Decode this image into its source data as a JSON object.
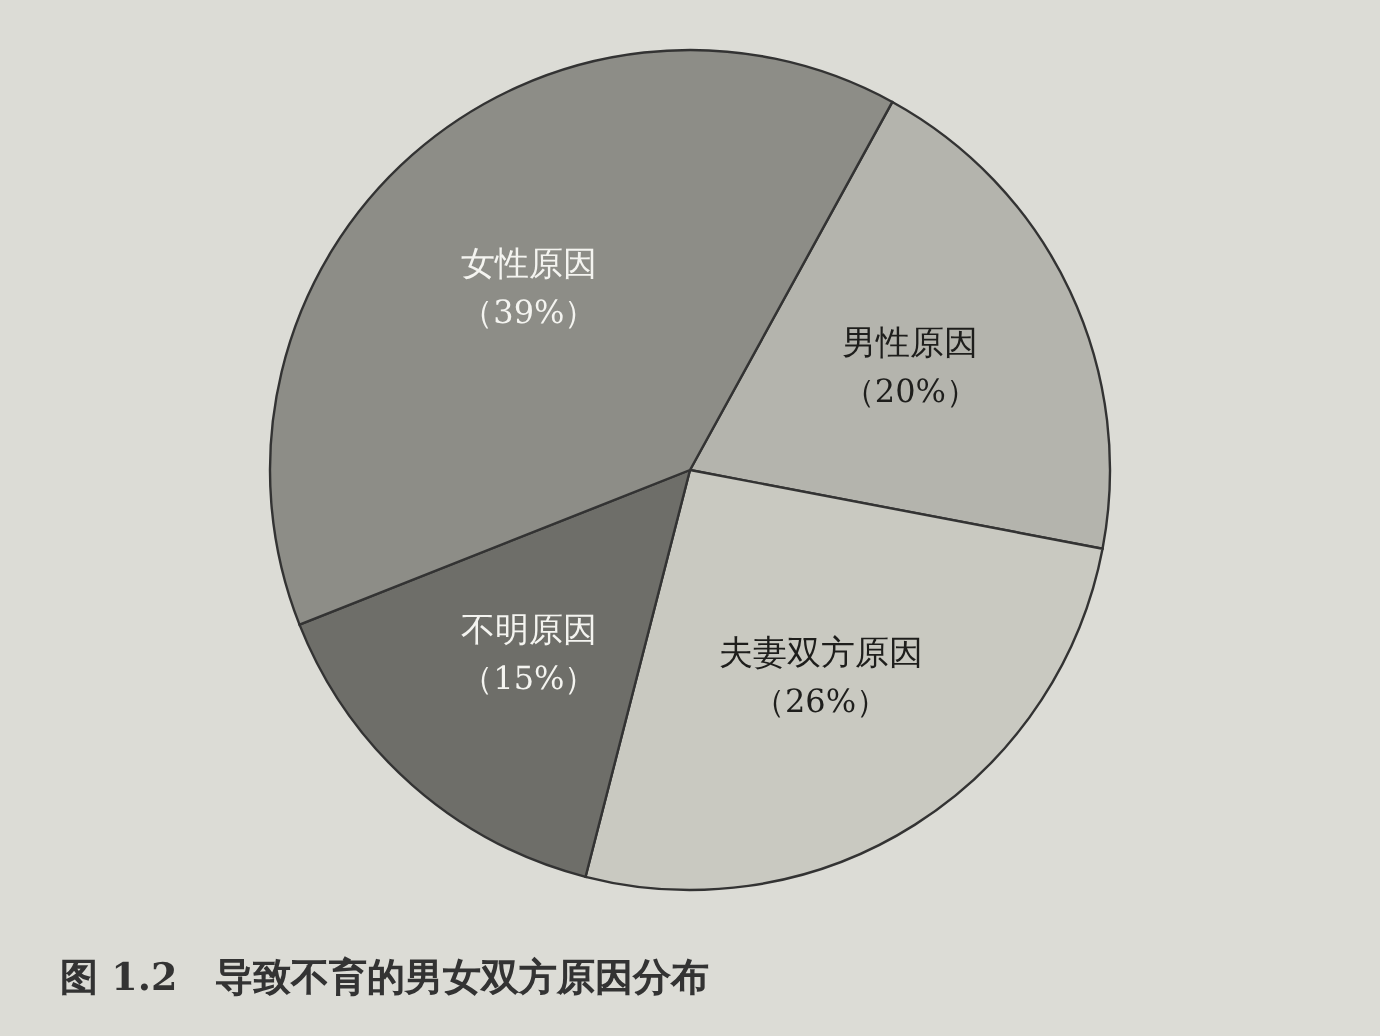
{
  "chart_data": {
    "type": "pie",
    "title": "图 1.2　导致不育的男女双方原因分布",
    "categories": [
      "男性原因",
      "夫妻双方原因",
      "不明原因",
      "女性原因"
    ],
    "values": [
      20,
      26,
      15,
      39
    ],
    "value_labels": [
      "（20%）",
      "（26%）",
      "（15%）",
      "（39%）"
    ],
    "colors": [
      "#b4b4ad",
      "#c9c9c1",
      "#6e6e69",
      "#8d8d87"
    ]
  }
}
